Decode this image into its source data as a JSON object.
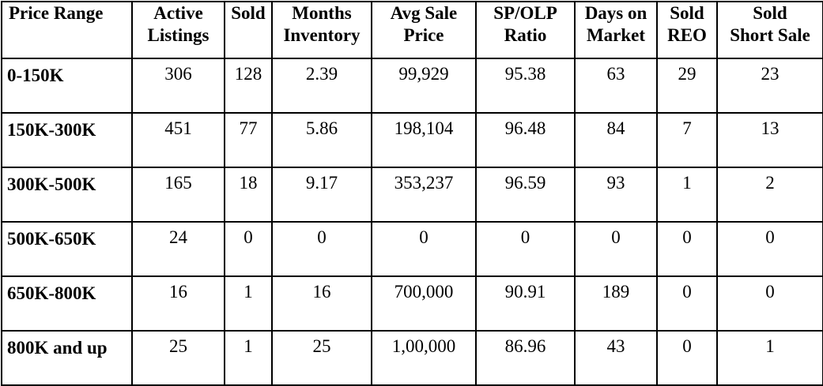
{
  "headers": [
    [
      "Price Range"
    ],
    [
      "Active",
      "Listings"
    ],
    [
      "Sold"
    ],
    [
      "Months",
      "Inventory"
    ],
    [
      "Avg Sale",
      "Price"
    ],
    [
      "SP/OLP",
      "Ratio"
    ],
    [
      "Days on",
      "Market"
    ],
    [
      "Sold",
      "REO"
    ],
    [
      "Sold",
      "Short Sale"
    ]
  ],
  "rows": [
    [
      "0-150K",
      "306",
      "128",
      "2.39",
      "99,929",
      "95.38",
      "63",
      "29",
      "23"
    ],
    [
      "150K-300K",
      "451",
      "77",
      "5.86",
      "198,104",
      "96.48",
      "84",
      "7",
      "13"
    ],
    [
      "300K-500K",
      "165",
      "18",
      "9.17",
      "353,237",
      "96.59",
      "93",
      "1",
      "2"
    ],
    [
      "500K-650K",
      "24",
      "0",
      "0",
      "0",
      "0",
      "0",
      "0",
      "0"
    ],
    [
      "650K-800K",
      "16",
      "1",
      "16",
      "700,000",
      "90.91",
      "189",
      "0",
      "0"
    ],
    [
      "800K and up",
      "25",
      "1",
      "25",
      "1,00,000",
      "86.96",
      "43",
      "0",
      "1"
    ]
  ]
}
